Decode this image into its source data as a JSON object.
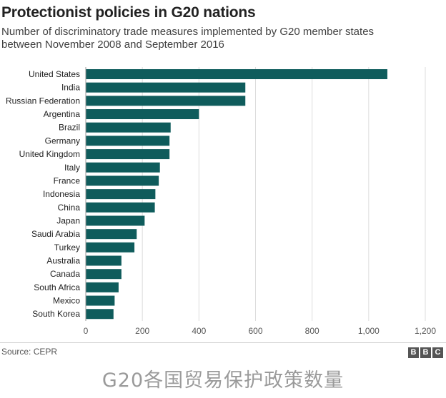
{
  "title": "Protectionist policies in G20 nations",
  "subtitle_line1": "Number of discriminatory trade measures implemented by G20 member states",
  "subtitle_line2": "between November 2008 and September 2016",
  "source": "Source: CEPR",
  "logo_letters": [
    "B",
    "B",
    "C"
  ],
  "caption": "G20各国贸易保护政策数量",
  "colors": {
    "bar": "#0f5c5c",
    "grid": "#dcdcdc",
    "axis_text": "#555555",
    "label_text": "#222222"
  },
  "chart_data": {
    "type": "bar",
    "orientation": "horizontal",
    "title": "Protectionist policies in G20 nations",
    "xlabel": "",
    "ylabel": "",
    "xlim": [
      0,
      1200
    ],
    "xticks": [
      0,
      200,
      400,
      600,
      800,
      1000,
      1200
    ],
    "xtick_labels": [
      "0",
      "200",
      "400",
      "600",
      "800",
      "1,000",
      "1,200"
    ],
    "grid": true,
    "categories": [
      "United States",
      "India",
      "Russian Federation",
      "Argentina",
      "Brazil",
      "Germany",
      "United Kingdom",
      "Italy",
      "France",
      "Indonesia",
      "China",
      "Japan",
      "Saudi Arabia",
      "Turkey",
      "Australia",
      "Canada",
      "South Africa",
      "Mexico",
      "South Korea"
    ],
    "values": [
      1066,
      564,
      564,
      400,
      300,
      296,
      296,
      262,
      258,
      246,
      244,
      208,
      180,
      172,
      126,
      126,
      116,
      102,
      98
    ]
  }
}
